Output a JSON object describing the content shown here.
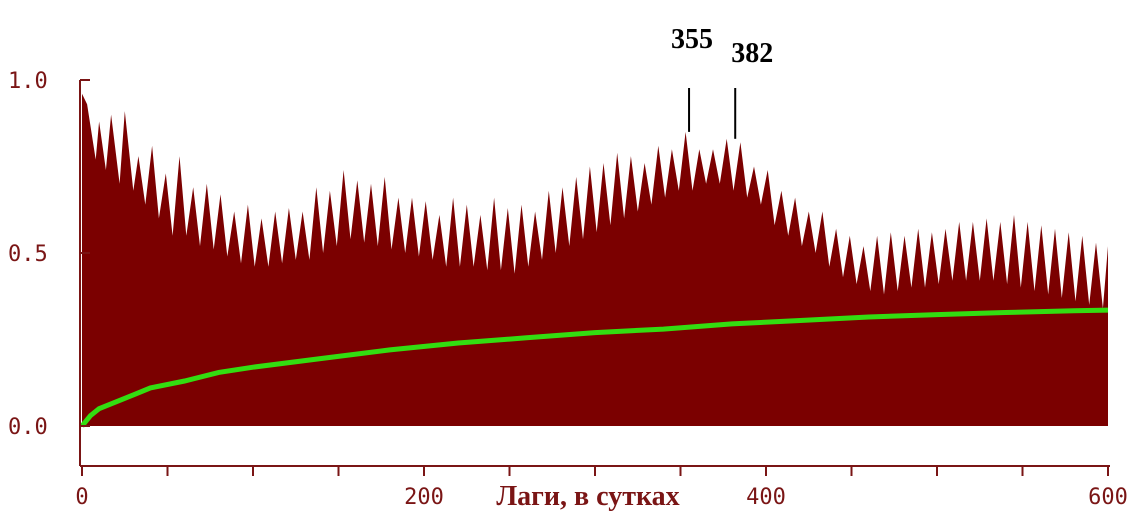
{
  "chart_data": {
    "type": "area",
    "title": "",
    "xlabel": "Лаги, в сутках",
    "ylabel": "",
    "xlim": [
      0,
      600
    ],
    "ylim": [
      0,
      1.0
    ],
    "x_ticks": [
      "0",
      "200",
      "400",
      "600"
    ],
    "y_ticks": [
      "0.0",
      "0.5",
      "1.0"
    ],
    "grid": false,
    "series": [
      {
        "kind": "area",
        "color": "#7b0000",
        "x": [
          0,
          3,
          8,
          10,
          14,
          17,
          22,
          25,
          30,
          33,
          37,
          41,
          45,
          49,
          53,
          57,
          61,
          65,
          69,
          73,
          77,
          81,
          85,
          89,
          93,
          97,
          101,
          105,
          109,
          113,
          117,
          121,
          125,
          129,
          133,
          137,
          141,
          145,
          149,
          153,
          157,
          161,
          165,
          169,
          173,
          177,
          181,
          185,
          189,
          193,
          197,
          201,
          205,
          209,
          213,
          217,
          221,
          225,
          229,
          233,
          237,
          241,
          245,
          249,
          253,
          257,
          261,
          265,
          269,
          273,
          277,
          281,
          285,
          289,
          293,
          297,
          301,
          305,
          309,
          313,
          317,
          321,
          325,
          329,
          333,
          337,
          341,
          345,
          349,
          353,
          357,
          361,
          365,
          369,
          373,
          377,
          381,
          385,
          389,
          393,
          397,
          401,
          405,
          409,
          413,
          417,
          421,
          425,
          429,
          433,
          437,
          441,
          445,
          449,
          453,
          457,
          461,
          465,
          469,
          473,
          477,
          481,
          485,
          489,
          493,
          497,
          501,
          505,
          509,
          513,
          517,
          521,
          525,
          529,
          533,
          537,
          541,
          545,
          549,
          553,
          557,
          561,
          565,
          569,
          573,
          577,
          581,
          585,
          589,
          593,
          597,
          600
        ],
        "values": [
          0.96,
          0.93,
          0.77,
          0.88,
          0.74,
          0.9,
          0.7,
          0.91,
          0.68,
          0.78,
          0.64,
          0.81,
          0.6,
          0.73,
          0.55,
          0.78,
          0.55,
          0.69,
          0.52,
          0.7,
          0.51,
          0.67,
          0.49,
          0.62,
          0.47,
          0.64,
          0.46,
          0.6,
          0.46,
          0.62,
          0.47,
          0.63,
          0.48,
          0.62,
          0.48,
          0.69,
          0.5,
          0.68,
          0.52,
          0.74,
          0.54,
          0.71,
          0.53,
          0.7,
          0.52,
          0.72,
          0.51,
          0.66,
          0.5,
          0.66,
          0.49,
          0.65,
          0.48,
          0.61,
          0.46,
          0.66,
          0.46,
          0.64,
          0.46,
          0.61,
          0.45,
          0.66,
          0.45,
          0.63,
          0.44,
          0.64,
          0.46,
          0.62,
          0.48,
          0.68,
          0.5,
          0.69,
          0.52,
          0.72,
          0.54,
          0.75,
          0.56,
          0.76,
          0.58,
          0.79,
          0.6,
          0.78,
          0.62,
          0.76,
          0.64,
          0.81,
          0.66,
          0.8,
          0.68,
          0.85,
          0.68,
          0.8,
          0.7,
          0.8,
          0.7,
          0.83,
          0.68,
          0.82,
          0.66,
          0.75,
          0.64,
          0.74,
          0.58,
          0.68,
          0.55,
          0.66,
          0.52,
          0.62,
          0.5,
          0.62,
          0.46,
          0.57,
          0.43,
          0.55,
          0.41,
          0.52,
          0.39,
          0.55,
          0.38,
          0.56,
          0.39,
          0.55,
          0.4,
          0.57,
          0.4,
          0.56,
          0.41,
          0.57,
          0.42,
          0.59,
          0.42,
          0.59,
          0.42,
          0.6,
          0.42,
          0.59,
          0.41,
          0.61,
          0.4,
          0.59,
          0.39,
          0.58,
          0.38,
          0.57,
          0.37,
          0.56,
          0.36,
          0.55,
          0.35,
          0.53,
          0.34,
          0.52
        ]
      },
      {
        "kind": "line",
        "color": "#33dd11",
        "x": [
          0,
          5,
          10,
          20,
          30,
          40,
          60,
          80,
          100,
          140,
          180,
          220,
          260,
          300,
          340,
          380,
          420,
          460,
          500,
          540,
          580,
          600
        ],
        "values": [
          0.0,
          0.03,
          0.05,
          0.07,
          0.09,
          0.11,
          0.13,
          0.155,
          0.17,
          0.195,
          0.22,
          0.24,
          0.255,
          0.27,
          0.28,
          0.295,
          0.305,
          0.315,
          0.322,
          0.328,
          0.333,
          0.335
        ]
      }
    ],
    "annotations": [
      {
        "label": "355",
        "x": 355,
        "y": 0.85
      },
      {
        "label": "382",
        "x": 382,
        "y": 0.83
      }
    ]
  }
}
